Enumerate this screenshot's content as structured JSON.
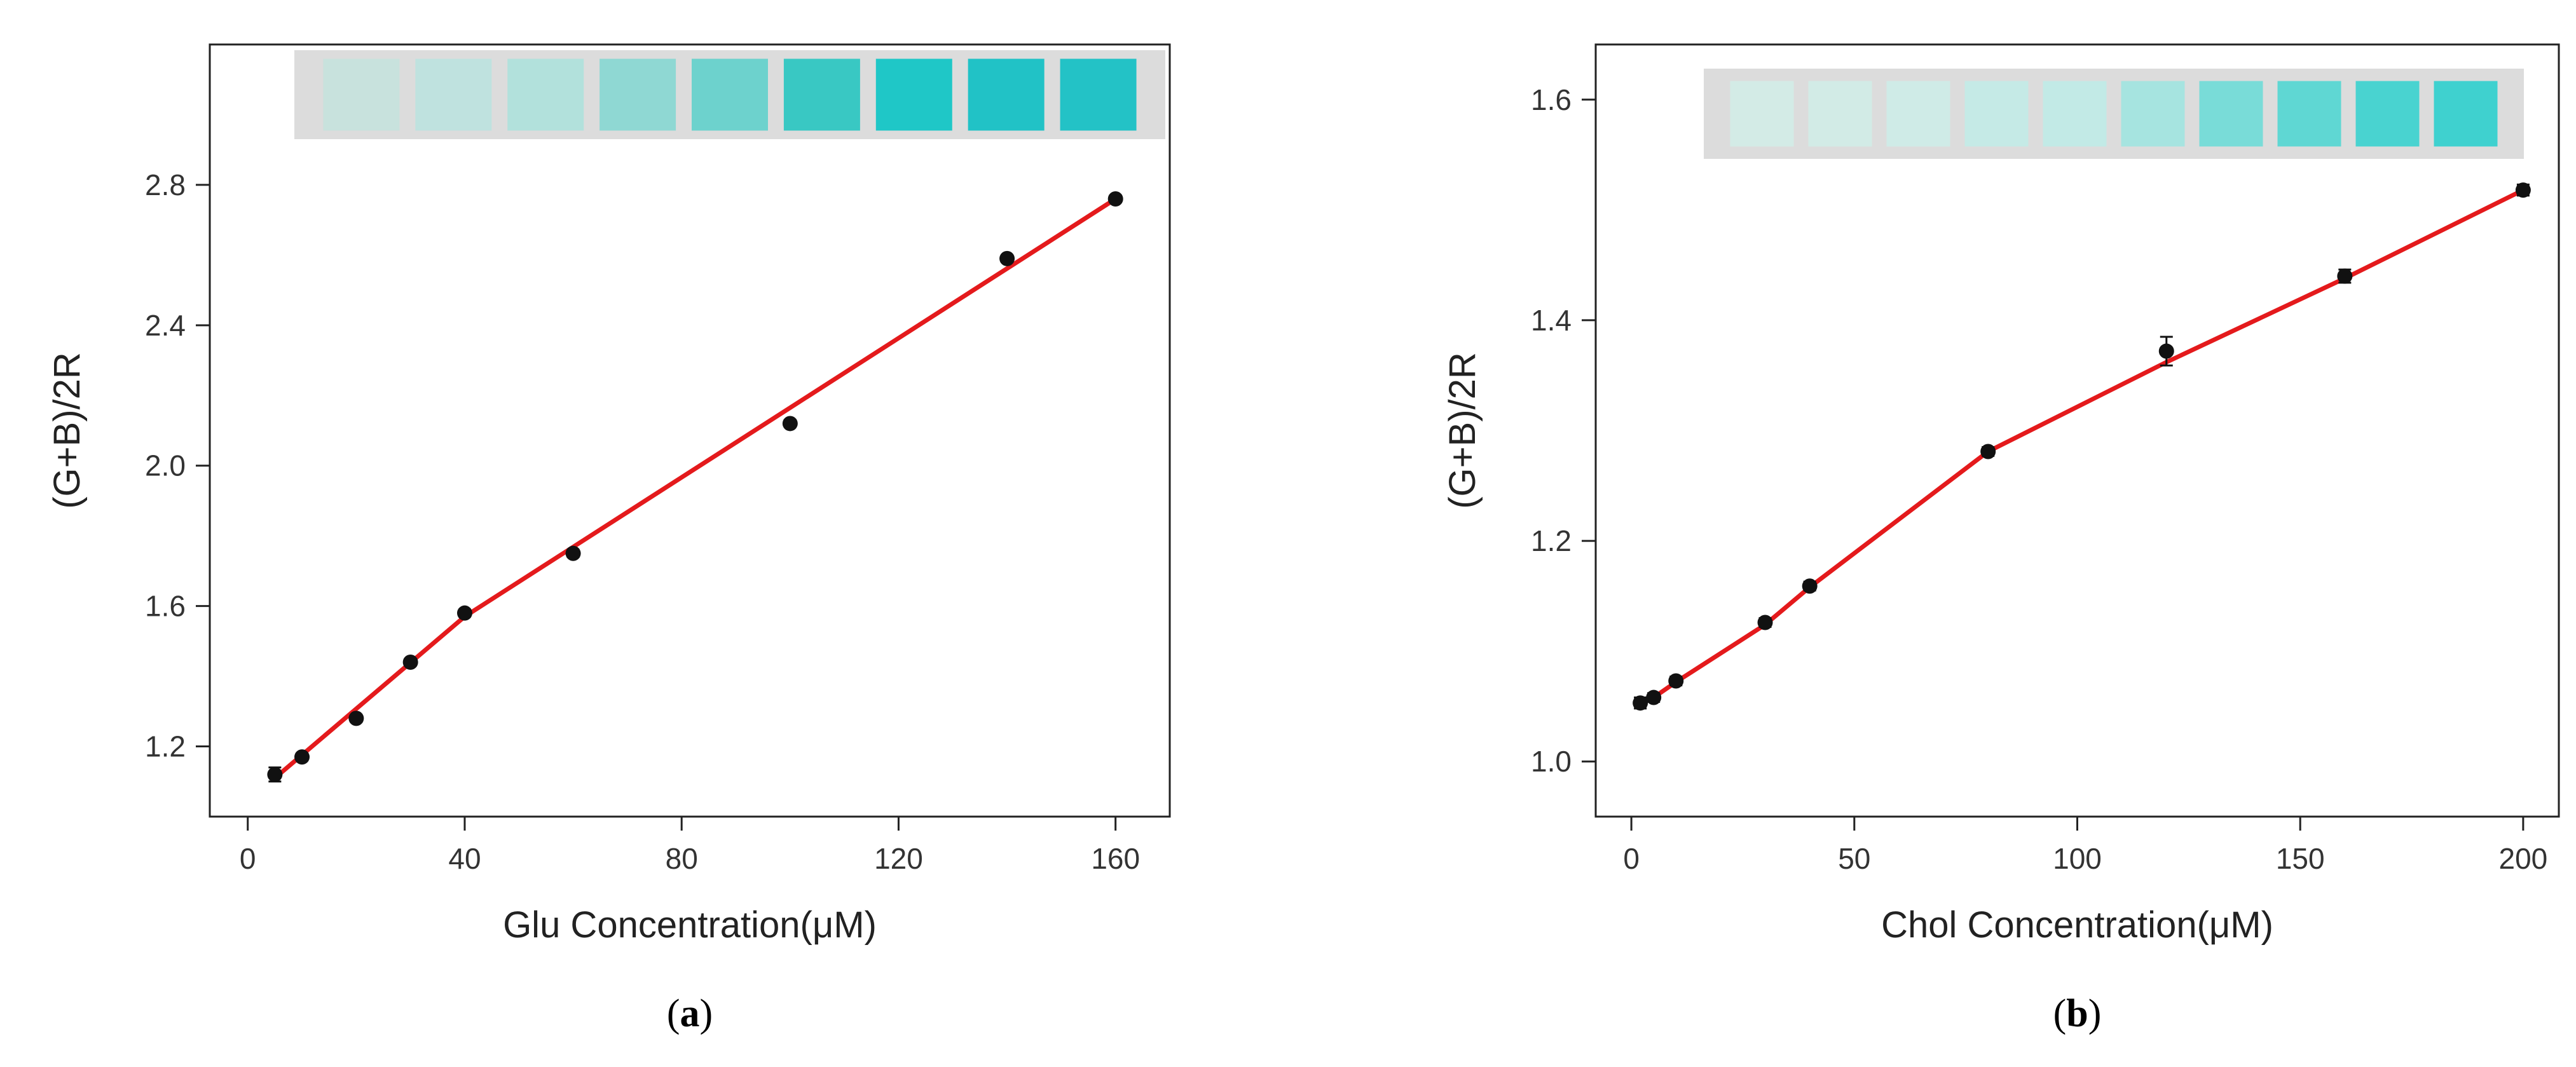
{
  "colors": {
    "line": "#e41a1c",
    "marker": "#111111",
    "axis": "#222222",
    "strip_bg": "#dcdcdc"
  },
  "chart_data": [
    {
      "type": "scatter",
      "panel_label": "a",
      "xlabel": "Glu Concentration(μM)",
      "ylabel": "(G+B)/2R",
      "xlim": [
        -7,
        170
      ],
      "ylim": [
        1.0,
        3.2
      ],
      "xticks": [
        0,
        40,
        80,
        120,
        160
      ],
      "yticks": [
        1.2,
        1.6,
        2.0,
        2.4,
        2.8
      ],
      "ytick_labels": [
        "1.2",
        "1.6",
        "2.0",
        "2.4",
        "2.8"
      ],
      "points": [
        {
          "x": 5,
          "y": 1.12,
          "err": 0.02
        },
        {
          "x": 10,
          "y": 1.17,
          "err": 0.01
        },
        {
          "x": 20,
          "y": 1.28,
          "err": 0.01
        },
        {
          "x": 30,
          "y": 1.44,
          "err": 0.01
        },
        {
          "x": 40,
          "y": 1.58,
          "err": 0.01
        },
        {
          "x": 60,
          "y": 1.75,
          "err": 0.01
        },
        {
          "x": 100,
          "y": 2.12,
          "err": 0.01
        },
        {
          "x": 140,
          "y": 2.59,
          "err": 0.01
        },
        {
          "x": 160,
          "y": 2.76,
          "err": 0.01
        }
      ],
      "fit_lines": [
        {
          "x": [
            5,
            40
          ],
          "y": [
            1.11,
            1.57
          ]
        },
        {
          "x": [
            40,
            160
          ],
          "y": [
            1.57,
            2.76
          ]
        }
      ],
      "swatches": [
        "#c8e2dd",
        "#bfe2df",
        "#b2e1dc",
        "#8fd8d3",
        "#6dd2cd",
        "#39c8c3",
        "#1fc7c7",
        "#21c2c6",
        "#23c2c6"
      ],
      "grid": false,
      "legend": "none"
    },
    {
      "type": "line",
      "panel_label": "b",
      "xlabel": "Chol Concentration(μM)",
      "ylabel": "(G+B)/2R",
      "xlim": [
        -8,
        208
      ],
      "ylim": [
        0.95,
        1.65
      ],
      "xticks": [
        0,
        50,
        100,
        150,
        200
      ],
      "yticks": [
        1.0,
        1.2,
        1.4,
        1.6
      ],
      "ytick_labels": [
        "1.0",
        "1.2",
        "1.4",
        "1.6"
      ],
      "points": [
        {
          "x": 2,
          "y": 1.053,
          "err": 0.005
        },
        {
          "x": 5,
          "y": 1.058,
          "err": 0.004
        },
        {
          "x": 10,
          "y": 1.073,
          "err": 0.004
        },
        {
          "x": 30,
          "y": 1.126,
          "err": 0.004
        },
        {
          "x": 40,
          "y": 1.159,
          "err": 0.004
        },
        {
          "x": 80,
          "y": 1.281,
          "err": 0.004
        },
        {
          "x": 120,
          "y": 1.372,
          "err": 0.013
        },
        {
          "x": 160,
          "y": 1.44,
          "err": 0.006
        },
        {
          "x": 200,
          "y": 1.518,
          "err": 0.005
        }
      ],
      "fit_lines": [
        {
          "x": [
            2,
            5,
            10,
            30,
            40,
            80,
            120,
            160,
            200
          ],
          "y": [
            1.052,
            1.058,
            1.072,
            1.124,
            1.158,
            1.281,
            1.362,
            1.438,
            1.518
          ]
        }
      ],
      "swatches": [
        "#d3ebe6",
        "#d2ebe6",
        "#cfebe7",
        "#c5eae6",
        "#c2eae6",
        "#a6e4e0",
        "#79dcd8",
        "#5fd7d3",
        "#49d3d0",
        "#3fd1cf"
      ],
      "grid": false,
      "legend": "none"
    }
  ]
}
